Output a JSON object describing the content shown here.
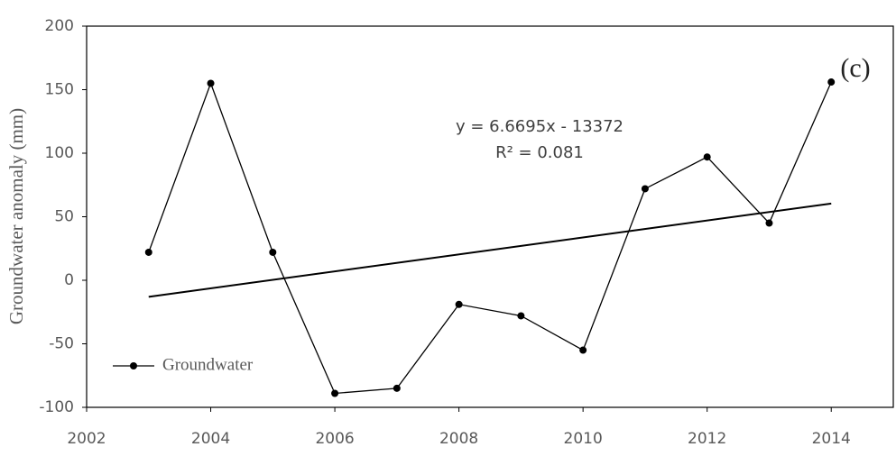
{
  "chart_data": {
    "type": "line",
    "y_label": "Groundwater anomaly (mm)",
    "annotation": "(c)",
    "equation": "y = 6.6695x - 13372",
    "r_squared": "R² = 0.081",
    "x": [
      2003,
      2004,
      2005,
      2006,
      2007,
      2008,
      2009,
      2010,
      2011,
      2012,
      2013,
      2014
    ],
    "series": [
      {
        "name": "Groundwater",
        "color": "#000000",
        "values": [
          22,
          155,
          22,
          -89,
          -85,
          -19,
          -28,
          -55,
          72,
          97,
          45,
          156
        ]
      }
    ],
    "trend": {
      "x": [
        2003,
        2014
      ],
      "values": [
        -13,
        60.4
      ],
      "color": "#000000"
    },
    "xlim": [
      2002,
      2015
    ],
    "xticks": [
      2002,
      2004,
      2006,
      2008,
      2010,
      2012,
      2014
    ],
    "ylim": [
      -100,
      200
    ],
    "yticks": [
      -100,
      -50,
      0,
      50,
      100,
      150,
      200
    ],
    "grid": false,
    "legend": "lower left"
  }
}
